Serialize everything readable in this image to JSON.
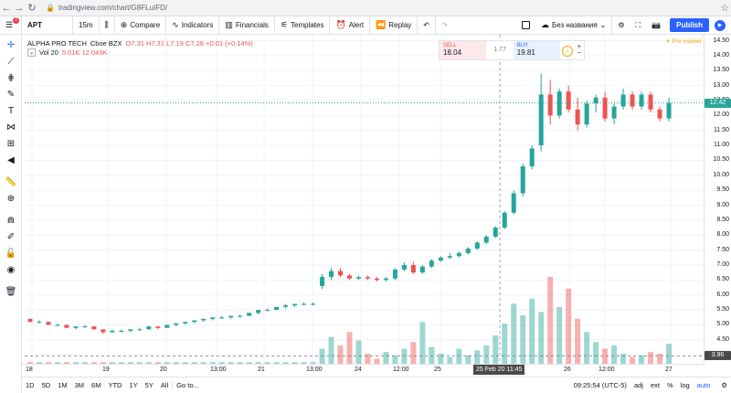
{
  "browser": {
    "url": "tradingview.com/chart/G8FLuIFD/"
  },
  "toolbar": {
    "symbol": "APT",
    "interval": "15m",
    "compare_label": "Compare",
    "indicators_label": "Indicators",
    "financials_label": "Financials",
    "templates_label": "Templates",
    "alert_label": "Alert",
    "replay_label": "Replay",
    "layout_name": "Без названия",
    "publish_label": "Publish",
    "menu_badge": "2"
  },
  "legend": {
    "name": "ALPHA PRO TECH",
    "interval": "15",
    "exchange": "Cboe BZX",
    "ohlc": "O7.31 H7.31 L7.19 C7.28 +0.01 (+0.14%)",
    "volume_label": "Vol 20",
    "volume_values": "5.01K 12.043K"
  },
  "trade": {
    "sell_label": "SELL",
    "sell_price": "18.04",
    "spread": "1.77",
    "buy_label": "BUY",
    "buy_price": "19.81"
  },
  "premarket_label": "Pre market",
  "price_axis": [
    "14.50",
    "14.00",
    "13.50",
    "13.00",
    "12.50",
    "12.00",
    "11.50",
    "11.00",
    "10.50",
    "10.00",
    "9.50",
    "9.00",
    "8.50",
    "8.00",
    "7.50",
    "7.00",
    "6.50",
    "6.00",
    "5.50",
    "5.00",
    "4.50",
    "4.00"
  ],
  "current_price": "12.42",
  "cursor_price": "3.96",
  "time_axis": [
    "18",
    "19",
    "20",
    "13:00",
    "21",
    "13:00",
    "24",
    "12:00",
    "25",
    "26",
    "12:00",
    "27"
  ],
  "cursor_time": "25 Feb 20   11:45",
  "bottom": {
    "ranges": [
      "1D",
      "5D",
      "1M",
      "3M",
      "6M",
      "YTD",
      "1Y",
      "5Y",
      "All"
    ],
    "goto": "Go to...",
    "clock": "09:25:54 (UTC-5)",
    "adj": "adj",
    "ext": "ext",
    "pct": "%",
    "log": "log",
    "auto": "auto"
  },
  "colors": {
    "up": "#26a69a",
    "down": "#ef5350",
    "accent": "#2962ff"
  },
  "chart_data": {
    "type": "candlestick",
    "ylim": [
      3.7,
      14.7
    ],
    "candles": [
      [
        5.2,
        5.2,
        5.1,
        5.1
      ],
      [
        5.1,
        5.15,
        5.05,
        5.1
      ],
      [
        5.1,
        5.1,
        5.0,
        5.0
      ],
      [
        5.0,
        5.05,
        4.95,
        5.0
      ],
      [
        5.0,
        5.0,
        4.9,
        4.9
      ],
      [
        4.9,
        4.95,
        4.85,
        4.95
      ],
      [
        4.95,
        5.0,
        4.9,
        4.95
      ],
      [
        4.95,
        4.95,
        4.85,
        4.85
      ],
      [
        4.85,
        4.85,
        4.7,
        4.75
      ],
      [
        4.75,
        4.85,
        4.75,
        4.8
      ],
      [
        4.8,
        4.85,
        4.75,
        4.8
      ],
      [
        4.8,
        4.85,
        4.75,
        4.85
      ],
      [
        4.85,
        4.9,
        4.8,
        4.85
      ],
      [
        4.85,
        4.95,
        4.85,
        4.95
      ],
      [
        4.95,
        4.95,
        4.85,
        4.9
      ],
      [
        4.9,
        5.0,
        4.9,
        5.0
      ],
      [
        5.0,
        5.05,
        4.95,
        5.05
      ],
      [
        5.05,
        5.1,
        5.0,
        5.1
      ],
      [
        5.1,
        5.15,
        5.05,
        5.15
      ],
      [
        5.15,
        5.2,
        5.1,
        5.2
      ],
      [
        5.2,
        5.25,
        5.15,
        5.25
      ],
      [
        5.25,
        5.3,
        5.2,
        5.25
      ],
      [
        5.25,
        5.3,
        5.2,
        5.3
      ],
      [
        5.3,
        5.35,
        5.25,
        5.3
      ],
      [
        5.3,
        5.4,
        5.3,
        5.4
      ],
      [
        5.4,
        5.5,
        5.35,
        5.5
      ],
      [
        5.5,
        5.55,
        5.45,
        5.5
      ],
      [
        5.5,
        5.6,
        5.5,
        5.6
      ],
      [
        5.6,
        5.7,
        5.55,
        5.65
      ],
      [
        5.65,
        5.7,
        5.6,
        5.7
      ],
      [
        5.7,
        5.75,
        5.65,
        5.7
      ],
      [
        5.7,
        5.75,
        5.65,
        5.7
      ],
      [
        6.3,
        6.7,
        6.2,
        6.6
      ],
      [
        6.6,
        6.9,
        6.5,
        6.8
      ],
      [
        6.8,
        6.9,
        6.6,
        6.65
      ],
      [
        6.65,
        6.7,
        6.5,
        6.55
      ],
      [
        6.55,
        6.65,
        6.5,
        6.6
      ],
      [
        6.6,
        6.65,
        6.5,
        6.55
      ],
      [
        6.55,
        6.6,
        6.45,
        6.5
      ],
      [
        6.5,
        6.6,
        6.45,
        6.55
      ],
      [
        6.55,
        6.9,
        6.5,
        6.85
      ],
      [
        6.85,
        7.1,
        6.8,
        7.0
      ],
      [
        7.0,
        7.1,
        6.7,
        6.75
      ],
      [
        6.75,
        7.0,
        6.7,
        6.95
      ],
      [
        6.95,
        7.2,
        6.9,
        7.15
      ],
      [
        7.15,
        7.3,
        7.1,
        7.25
      ],
      [
        7.25,
        7.4,
        7.2,
        7.3
      ],
      [
        7.3,
        7.45,
        7.25,
        7.4
      ],
      [
        7.4,
        7.6,
        7.35,
        7.55
      ],
      [
        7.55,
        7.8,
        7.5,
        7.75
      ],
      [
        7.75,
        8.0,
        7.7,
        7.95
      ],
      [
        7.95,
        8.3,
        7.9,
        8.25
      ],
      [
        8.25,
        8.8,
        8.2,
        8.75
      ],
      [
        8.75,
        9.5,
        8.7,
        9.4
      ],
      [
        9.4,
        10.4,
        9.3,
        10.3
      ],
      [
        10.3,
        11.0,
        10.2,
        10.9
      ],
      [
        11.0,
        13.4,
        10.8,
        12.7
      ],
      [
        12.7,
        13.2,
        11.7,
        12.0
      ],
      [
        12.0,
        12.9,
        11.9,
        12.8
      ],
      [
        12.8,
        13.0,
        12.1,
        12.2
      ],
      [
        12.2,
        12.6,
        11.5,
        11.7
      ],
      [
        11.7,
        12.5,
        11.6,
        12.4
      ],
      [
        12.4,
        12.7,
        12.1,
        12.6
      ],
      [
        12.6,
        12.8,
        11.8,
        11.9
      ],
      [
        11.9,
        12.4,
        11.7,
        12.3
      ],
      [
        12.3,
        12.9,
        12.2,
        12.7
      ],
      [
        12.7,
        12.8,
        12.2,
        12.3
      ],
      [
        12.3,
        12.8,
        12.2,
        12.7
      ],
      [
        12.7,
        12.8,
        12.1,
        12.2
      ],
      [
        12.2,
        12.3,
        11.8,
        11.9
      ],
      [
        11.9,
        12.6,
        11.8,
        12.42
      ]
    ],
    "volume": [
      1,
      1,
      1,
      1,
      1,
      1,
      1,
      1,
      1,
      1,
      1,
      1,
      1,
      1,
      1,
      1,
      1,
      1,
      1,
      1,
      1,
      1,
      1,
      1,
      1,
      1,
      1,
      1,
      1,
      1,
      1,
      1,
      9,
      16,
      11,
      19,
      14,
      6,
      3,
      7,
      5,
      9,
      13,
      25,
      10,
      6,
      4,
      9,
      5,
      8,
      11,
      17,
      24,
      36,
      29,
      39,
      31,
      52,
      34,
      45,
      27,
      19,
      13,
      9,
      11,
      6,
      4,
      5,
      7,
      6,
      12
    ]
  }
}
